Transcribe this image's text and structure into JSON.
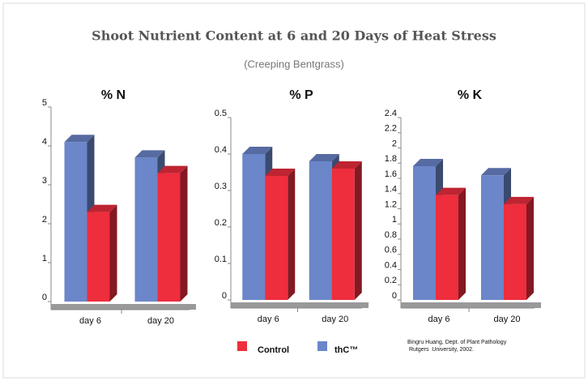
{
  "title": "Shoot Nutrient Content at 6 and 20 Days of Heat Stress",
  "subtitle": "(Creeping Bentgrass)",
  "legend": [
    {
      "name": "Control",
      "color": "#ee2d3d"
    },
    {
      "name": "thC™",
      "color": "#6b86c9"
    }
  ],
  "source": [
    "Bingru Huang, Dept. of Plant Pathology",
    " Rutgers  University, 2002."
  ],
  "chart_data": [
    {
      "type": "bar",
      "title": "% N",
      "categories": [
        "day 6",
        "day 20"
      ],
      "series": [
        {
          "color": "#6b86c9",
          "values": [
            4.1,
            3.7
          ]
        },
        {
          "color": "#ee2d3d",
          "values": [
            2.3,
            3.3
          ]
        }
      ],
      "ylim": [
        0,
        5
      ],
      "yticks": [
        0,
        1,
        2,
        3,
        4,
        5
      ]
    },
    {
      "type": "bar",
      "title": "% P",
      "categories": [
        "day 6",
        "day 20"
      ],
      "series": [
        {
          "color": "#6b86c9",
          "values": [
            0.4,
            0.38
          ]
        },
        {
          "color": "#ee2d3d",
          "values": [
            0.34,
            0.36
          ]
        }
      ],
      "ylim": [
        0,
        0.5
      ],
      "yticks": [
        0,
        0.1,
        0.2,
        0.3,
        0.4,
        0.5
      ]
    },
    {
      "type": "bar",
      "title": "% K",
      "categories": [
        "day 6",
        "day 20"
      ],
      "series": [
        {
          "color": "#6b86c9",
          "values": [
            1.76,
            1.64
          ]
        },
        {
          "color": "#ee2d3d",
          "values": [
            1.38,
            1.26
          ]
        }
      ],
      "ylim": [
        0,
        2.4
      ],
      "yticks": [
        0,
        0.2,
        0.4,
        0.6,
        0.8,
        1,
        1.2,
        1.4,
        1.6,
        1.8,
        2,
        2.2,
        2.4
      ]
    }
  ]
}
